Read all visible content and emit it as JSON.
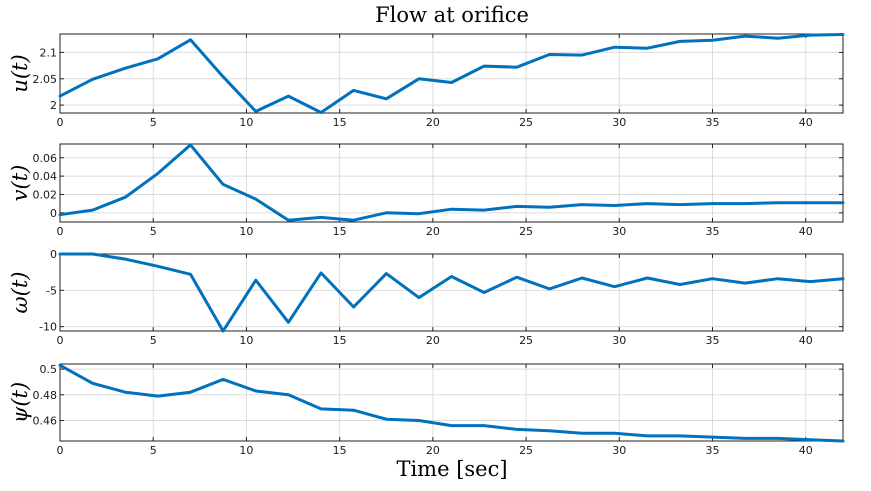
{
  "chart_data": {
    "type": "line",
    "title": "Flow at orifice",
    "xlabel": "Time [sec]",
    "xlim": [
      0,
      42
    ],
    "xticks": [
      "0",
      "5",
      "10",
      "15",
      "20",
      "25",
      "30",
      "35",
      "40"
    ],
    "line_color": "#0072bd",
    "grid": true,
    "subplots": [
      {
        "ylabel": "u(t)",
        "ylim": [
          1.985,
          2.135
        ],
        "yticks": [
          2.0,
          2.05,
          2.1
        ],
        "ytick_labels": [
          "2",
          "2.05",
          "2.1"
        ],
        "x": [
          0,
          1.75,
          3.5,
          5.25,
          7,
          8.75,
          10.5,
          12.25,
          14,
          15.75,
          17.5,
          19.25,
          21,
          22.75,
          24.5,
          26.25,
          28,
          29.75,
          31.5,
          33.25,
          35,
          36.75,
          38.5,
          40.25,
          42
        ],
        "y": [
          2.017,
          2.049,
          2.07,
          2.088,
          2.124,
          2.054,
          1.988,
          2.017,
          1.986,
          2.028,
          2.012,
          2.05,
          2.043,
          2.074,
          2.072,
          2.096,
          2.095,
          2.11,
          2.108,
          2.121,
          2.123,
          2.131,
          2.127,
          2.133,
          2.134
        ]
      },
      {
        "ylabel": "v(t)",
        "ylim": [
          -0.01,
          0.075
        ],
        "yticks": [
          0,
          0.02,
          0.04,
          0.06
        ],
        "ytick_labels": [
          "0",
          "0.02",
          "0.04",
          "0.06"
        ],
        "x": [
          0,
          1.75,
          3.5,
          5.25,
          7,
          8.75,
          10.5,
          12.25,
          14,
          15.75,
          17.5,
          19.25,
          21,
          22.75,
          24.5,
          26.25,
          28,
          29.75,
          31.5,
          33.25,
          35,
          36.75,
          38.5,
          40.25,
          42
        ],
        "y": [
          -0.002,
          0.003,
          0.017,
          0.043,
          0.074,
          0.031,
          0.015,
          -0.008,
          -0.005,
          -0.008,
          0.0,
          -0.001,
          0.004,
          0.003,
          0.007,
          0.006,
          0.009,
          0.008,
          0.01,
          0.009,
          0.01,
          0.01,
          0.011,
          0.011,
          0.011
        ]
      },
      {
        "ylabel": "ω(t)",
        "ylim": [
          -10.6,
          0
        ],
        "yticks": [
          -10,
          -5,
          0
        ],
        "ytick_labels": [
          "-10",
          "-5",
          "0"
        ],
        "x": [
          0,
          1.75,
          3.5,
          5.25,
          7,
          8.75,
          10.5,
          12.25,
          14,
          15.75,
          17.5,
          19.25,
          21,
          22.75,
          24.5,
          26.25,
          28,
          29.75,
          31.5,
          33.25,
          35,
          36.75,
          38.5,
          40.25,
          42
        ],
        "y": [
          0,
          0,
          -0.7,
          -1.7,
          -2.8,
          -10.6,
          -3.6,
          -9.4,
          -2.6,
          -7.3,
          -2.7,
          -6.0,
          -3.1,
          -5.3,
          -3.2,
          -4.8,
          -3.3,
          -4.5,
          -3.3,
          -4.2,
          -3.4,
          -4.0,
          -3.4,
          -3.8,
          -3.4
        ]
      },
      {
        "ylabel": "ψ(t)",
        "ylim": [
          0.444,
          0.504
        ],
        "yticks": [
          0.46,
          0.48,
          0.5
        ],
        "ytick_labels": [
          "0.46",
          "0.48",
          "0.5"
        ],
        "x": [
          0,
          1.75,
          3.5,
          5.25,
          7,
          8.75,
          10.5,
          12.25,
          14,
          15.75,
          17.5,
          19.25,
          21,
          22.75,
          24.5,
          26.25,
          28,
          29.75,
          31.5,
          33.25,
          35,
          36.75,
          38.5,
          40.25,
          42
        ],
        "y": [
          0.503,
          0.489,
          0.482,
          0.479,
          0.482,
          0.492,
          0.483,
          0.48,
          0.469,
          0.468,
          0.461,
          0.46,
          0.456,
          0.456,
          0.453,
          0.452,
          0.45,
          0.45,
          0.448,
          0.448,
          0.447,
          0.446,
          0.446,
          0.445,
          0.444
        ]
      }
    ]
  }
}
